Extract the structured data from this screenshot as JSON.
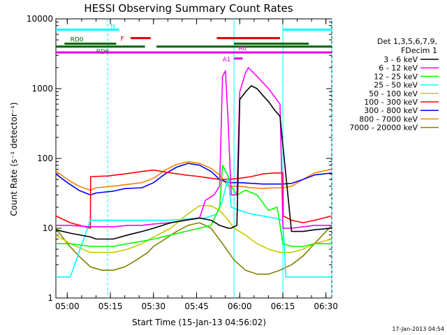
{
  "chart_data": {
    "type": "line",
    "title": "HESSI Observing Summary Count Rates",
    "xlabel": "Start Time (15-Jan-13 04:56:02)",
    "ylabel": "Count Rate (s⁻¹ detector⁻¹)",
    "y_scale": "log",
    "ylim": [
      1,
      10000
    ],
    "xlim_minutes": [
      0,
      96
    ],
    "grid": false,
    "legend_position": "right",
    "legend_header": [
      "Det 1,3,5,6,7,9,",
      "FDecim 1"
    ],
    "x_ticks": [
      "05:00",
      "05:15",
      "05:30",
      "05:45",
      "06:00",
      "06:15",
      "06:30"
    ],
    "x_tick_minutes": [
      3.97,
      18.97,
      33.97,
      48.97,
      63.97,
      78.97,
      93.97
    ],
    "y_ticks": [
      "1",
      "10",
      "100",
      "1000",
      "10000"
    ],
    "y_tick_values": [
      1,
      10,
      100,
      1000,
      10000
    ],
    "timestamp": "17-Jan-2013 04:54",
    "series": [
      {
        "name": "3 - 6 keV",
        "color": "#000000",
        "x": [
          0,
          5,
          12,
          14,
          20,
          25,
          30,
          34,
          40,
          45,
          50,
          54,
          57,
          60,
          61,
          63,
          64,
          66,
          68,
          70,
          72,
          74,
          76,
          78,
          82,
          86,
          90,
          96
        ],
        "y": [
          9.5,
          8.5,
          7.5,
          7,
          7,
          8,
          9,
          10,
          12,
          13,
          14,
          13,
          11,
          10,
          10,
          11,
          700,
          900,
          1100,
          1000,
          800,
          650,
          500,
          400,
          9,
          9,
          9.5,
          10
        ]
      },
      {
        "name": "6 - 12 keV",
        "color": "#ff00ff",
        "x": [
          0,
          5,
          12,
          20,
          25,
          30,
          34,
          40,
          45,
          50,
          52,
          55,
          57,
          58,
          59,
          60,
          61,
          63,
          64,
          66,
          67,
          70,
          74,
          78,
          79,
          82,
          86,
          90,
          96
        ],
        "y": [
          11,
          11,
          10.5,
          10.5,
          11,
          11,
          11.5,
          12,
          13,
          14,
          25,
          30,
          40,
          1500,
          1800,
          300,
          30,
          30,
          900,
          1700,
          2000,
          1500,
          1000,
          600,
          10,
          10,
          10.5,
          11,
          11
        ]
      },
      {
        "name": "12 - 25 keV",
        "color": "#00ff00",
        "x": [
          0,
          5,
          12,
          14,
          20,
          25,
          30,
          34,
          40,
          45,
          50,
          54,
          57,
          58,
          60,
          61,
          63,
          66,
          70,
          74,
          77,
          79,
          82,
          86,
          90,
          96
        ],
        "y": [
          6,
          6,
          5.5,
          5.5,
          5.5,
          6,
          6.5,
          7,
          8,
          9,
          10,
          11,
          20,
          80,
          55,
          40,
          30,
          35,
          30,
          18,
          20,
          6,
          5.5,
          5.5,
          6,
          6
        ]
      },
      {
        "name": "25 - 50 keV",
        "color": "#00ffff",
        "x": [
          0,
          5,
          12,
          18,
          24,
          30,
          34,
          40,
          45,
          50,
          52,
          56,
          58,
          60,
          61,
          64,
          68,
          72,
          76,
          79,
          80,
          90,
          96
        ],
        "y": [
          2,
          2,
          13,
          13,
          13,
          13,
          13,
          13,
          13.5,
          14,
          14,
          16,
          25,
          55,
          20,
          18,
          16,
          15,
          14,
          13,
          2,
          2,
          2
        ]
      },
      {
        "name": "50 - 100 keV",
        "color": "#c8c800",
        "x": [
          0,
          5,
          12,
          20,
          25,
          30,
          34,
          40,
          45,
          50,
          54,
          57,
          60,
          62,
          66,
          70,
          74,
          78,
          82,
          86,
          90,
          96
        ],
        "y": [
          8,
          6,
          4.5,
          4.5,
          5,
          6,
          7.5,
          10,
          15,
          21,
          21,
          18,
          13,
          10,
          8,
          6,
          5,
          4.5,
          4.5,
          5,
          6,
          7
        ]
      },
      {
        "name": "100 - 300 keV",
        "color": "#ff0000",
        "x": [
          0,
          5,
          12,
          12.1,
          18,
          24,
          30,
          34,
          40,
          45,
          50,
          54,
          57,
          60,
          64,
          68,
          72,
          76,
          79,
          79.1,
          82,
          86,
          90,
          96
        ],
        "y": [
          15,
          12,
          10,
          55,
          56,
          60,
          65,
          68,
          62,
          58,
          55,
          52,
          50,
          50,
          52,
          55,
          60,
          62,
          62,
          15,
          13,
          12,
          13,
          15
        ]
      },
      {
        "name": "300 - 800 keV",
        "color": "#0000ff",
        "x": [
          0,
          4,
          8,
          12,
          14,
          20,
          24,
          30,
          34,
          38,
          42,
          46,
          50,
          54,
          57,
          60,
          64,
          68,
          72,
          76,
          79,
          82,
          86,
          90,
          96
        ],
        "y": [
          60,
          45,
          35,
          30,
          32,
          34,
          37,
          38,
          45,
          60,
          75,
          85,
          80,
          65,
          50,
          45,
          45,
          44,
          43,
          43,
          43,
          44,
          50,
          58,
          62
        ]
      },
      {
        "name": "800 - 7000 keV",
        "color": "#ff8000",
        "x": [
          0,
          4,
          8,
          12,
          14,
          20,
          24,
          30,
          34,
          38,
          42,
          46,
          50,
          54,
          57,
          60,
          64,
          68,
          72,
          76,
          79,
          82,
          86,
          90,
          96
        ],
        "y": [
          66,
          50,
          40,
          35,
          38,
          40,
          42,
          45,
          52,
          68,
          82,
          90,
          85,
          72,
          58,
          40,
          40,
          38,
          37,
          38,
          38,
          40,
          50,
          62,
          70
        ]
      },
      {
        "name": "7000 - 20000 keV",
        "color": "#808000",
        "x": [
          0,
          4,
          8,
          12,
          16,
          20,
          24,
          28,
          32,
          34,
          38,
          42,
          46,
          50,
          54,
          58,
          62,
          66,
          70,
          74,
          78,
          82,
          86,
          90,
          94,
          96
        ],
        "y": [
          10,
          6,
          4,
          2.8,
          2.5,
          2.5,
          2.8,
          3.5,
          4.5,
          5.5,
          7,
          9,
          11,
          12,
          10,
          6,
          3.5,
          2.5,
          2.2,
          2.2,
          2.5,
          3,
          4,
          6,
          9,
          11
        ]
      }
    ],
    "flag_bars": [
      {
        "label": "N",
        "color": "#00ffff",
        "y": 7000,
        "segments": [
          [
            0,
            22
          ],
          [
            79,
            96
          ]
        ]
      },
      {
        "label": "F",
        "color": "#e00000",
        "y": 5300,
        "segments": [
          [
            26,
            33
          ],
          [
            56,
            78
          ]
        ]
      },
      {
        "label": "RD0",
        "color": "#006400",
        "y": 4400,
        "segments": [
          [
            3,
            21
          ],
          [
            62,
            88
          ]
        ]
      },
      {
        "label": "RD6",
        "color": "#006400",
        "y": 4000,
        "segments": [
          [
            0,
            31
          ],
          [
            35,
            96
          ]
        ]
      },
      {
        "label": "A0",
        "color": "#e000e0",
        "y": 3300,
        "segments": [
          [
            0,
            96
          ]
        ]
      },
      {
        "label": "A1",
        "color": "#e000e0",
        "y": 2700,
        "segments": [
          [
            62,
            65
          ]
        ]
      }
    ],
    "vertical_markers": [
      {
        "color": "#00ffff",
        "style": "dashed",
        "x": 18
      },
      {
        "color": "#00ffff",
        "style": "solid",
        "x": 62
      },
      {
        "color": "#00ffff",
        "style": "solid",
        "x": 79
      },
      {
        "color": "#00ffff",
        "style": "dashed",
        "x": 96
      }
    ]
  }
}
